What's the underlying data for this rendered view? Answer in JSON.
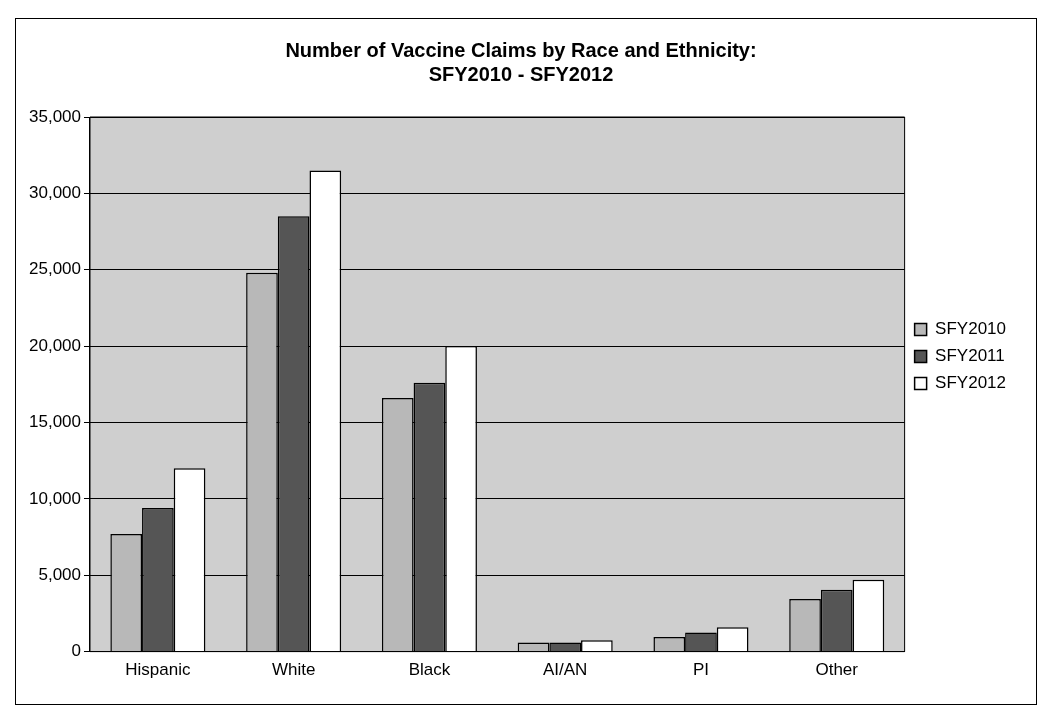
{
  "chart_data": {
    "type": "bar",
    "title": "Number of Vaccine Claims by Race and Ethnicity:\nSFY2010 - SFY2012",
    "categories": [
      "Hispanic",
      "White",
      "Black",
      "AI/AN",
      "PI",
      "Other"
    ],
    "series": [
      {
        "name": "SFY2010",
        "color": "#b8b8b8",
        "values": [
          7700,
          24800,
          16600,
          600,
          950,
          3450
        ]
      },
      {
        "name": "SFY2011",
        "color": "#555555",
        "values": [
          9400,
          28500,
          17600,
          600,
          1250,
          4050
        ]
      },
      {
        "name": "SFY2012",
        "color": "#ffffff",
        "values": [
          12000,
          31500,
          20000,
          750,
          1600,
          4700
        ]
      }
    ],
    "ylim": [
      0,
      35000
    ],
    "yticks": [
      0,
      {
        "value": 5000,
        "label": "5,000"
      },
      {
        "value": 10000,
        "label": "10,000"
      },
      {
        "value": 15000,
        "label": "15,000"
      },
      {
        "value": 20000,
        "label": "20,000"
      },
      {
        "value": 25000,
        "label": "25,000"
      },
      {
        "value": 30000,
        "label": "30,000"
      },
      {
        "value": 35000,
        "label": "35,000"
      }
    ],
    "grid": "y",
    "legend": "right"
  }
}
